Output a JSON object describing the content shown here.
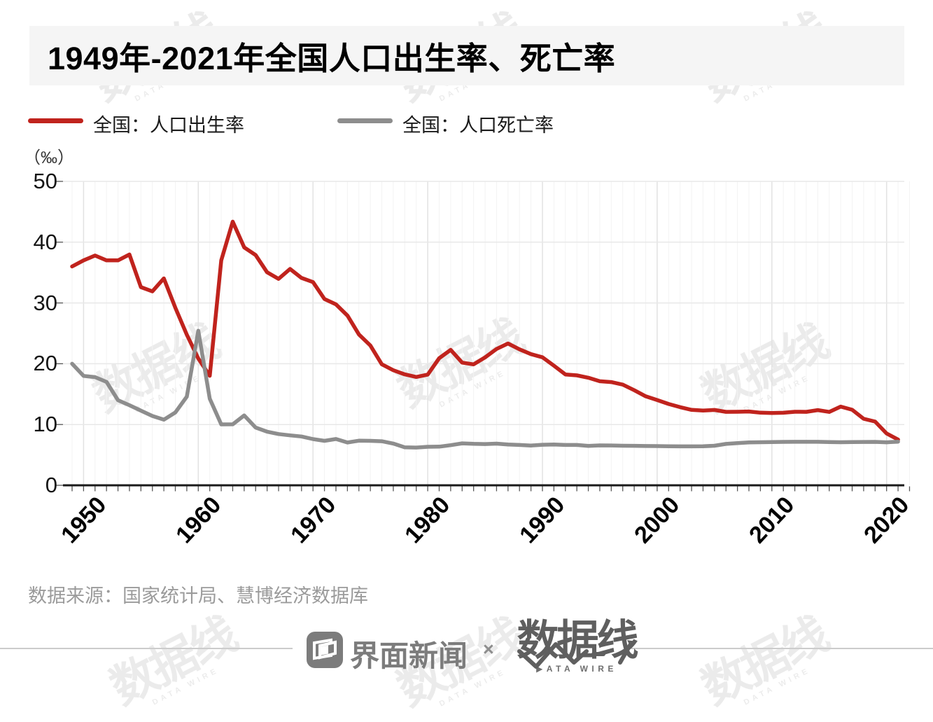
{
  "title": "1949年-2021年全国人口出生率、死亡率",
  "unit_label": "（‰）",
  "legend": [
    {
      "label": "全国：人口出生率",
      "color": "#c0231d"
    },
    {
      "label": "全国：人口死亡率",
      "color": "#8d8d8d"
    }
  ],
  "source": "数据来源：国家统计局、慧博经济数据库",
  "footer": {
    "jiemian_label": "界面新闻",
    "separator": "×",
    "datawire_label": "数据线",
    "datawire_caption": "▶ATA WIRE"
  },
  "watermark": {
    "big": "数据线",
    "small": "DATA WIRE"
  },
  "colors": {
    "birth_line": "#c0231d",
    "death_line": "#8d8d8d",
    "title_band": "#f5f5f5",
    "axis": "#1a1a1a",
    "grid_major": "#e8e8e8",
    "grid_year": "#f3f3f3",
    "grid_decade": "#e2e2e2",
    "tick": "#555555"
  },
  "chart_data": {
    "type": "line",
    "title": "1949年-2021年全国人口出生率、死亡率",
    "ylabel": "‰",
    "ylim": [
      0,
      50
    ],
    "yticks": [
      0,
      10,
      20,
      30,
      40,
      50
    ],
    "xticks": [
      1950,
      1960,
      1970,
      1980,
      1990,
      2000,
      2010,
      2020
    ],
    "grid": true,
    "legend_position": "top-left",
    "years": [
      1949,
      1950,
      1951,
      1952,
      1953,
      1954,
      1955,
      1956,
      1957,
      1958,
      1959,
      1960,
      1961,
      1962,
      1963,
      1964,
      1965,
      1966,
      1967,
      1968,
      1969,
      1970,
      1971,
      1972,
      1973,
      1974,
      1975,
      1976,
      1977,
      1978,
      1979,
      1980,
      1981,
      1982,
      1983,
      1984,
      1985,
      1986,
      1987,
      1988,
      1989,
      1990,
      1991,
      1992,
      1993,
      1994,
      1995,
      1996,
      1997,
      1998,
      1999,
      2000,
      2001,
      2002,
      2003,
      2004,
      2005,
      2006,
      2007,
      2008,
      2009,
      2010,
      2011,
      2012,
      2013,
      2014,
      2015,
      2016,
      2017,
      2018,
      2019,
      2020,
      2021
    ],
    "series": [
      {
        "name": "全国：人口出生率",
        "color": "#c0231d",
        "values": [
          36.0,
          37.0,
          37.8,
          37.0,
          37.0,
          37.97,
          32.6,
          31.9,
          34.03,
          29.22,
          24.78,
          20.86,
          18.02,
          37.01,
          43.37,
          39.14,
          37.88,
          35.05,
          33.96,
          35.59,
          34.11,
          33.43,
          30.65,
          29.77,
          27.93,
          24.82,
          23.01,
          19.91,
          18.93,
          18.25,
          17.82,
          18.21,
          20.91,
          22.28,
          20.19,
          19.9,
          21.04,
          22.43,
          23.33,
          22.37,
          21.58,
          21.06,
          19.68,
          18.24,
          18.09,
          17.7,
          17.12,
          16.98,
          16.57,
          15.64,
          14.64,
          14.03,
          13.38,
          12.86,
          12.41,
          12.29,
          12.4,
          12.09,
          12.1,
          12.14,
          11.95,
          11.9,
          11.93,
          12.1,
          12.08,
          12.37,
          12.07,
          12.95,
          12.43,
          10.94,
          10.48,
          8.52,
          7.52
        ]
      },
      {
        "name": "全国：人口死亡率",
        "color": "#8d8d8d",
        "values": [
          20.0,
          18.0,
          17.8,
          17.0,
          14.0,
          13.18,
          12.28,
          11.4,
          10.8,
          11.98,
          14.59,
          25.43,
          14.24,
          10.02,
          10.04,
          11.5,
          9.5,
          8.83,
          8.43,
          8.21,
          8.03,
          7.6,
          7.32,
          7.61,
          7.04,
          7.34,
          7.32,
          7.25,
          6.87,
          6.25,
          6.21,
          6.34,
          6.36,
          6.6,
          6.9,
          6.82,
          6.78,
          6.86,
          6.72,
          6.64,
          6.54,
          6.67,
          6.7,
          6.64,
          6.64,
          6.49,
          6.57,
          6.56,
          6.51,
          6.5,
          6.46,
          6.45,
          6.43,
          6.41,
          6.4,
          6.42,
          6.51,
          6.81,
          6.93,
          7.06,
          7.08,
          7.11,
          7.14,
          7.15,
          7.16,
          7.16,
          7.11,
          7.09,
          7.11,
          7.13,
          7.14,
          7.07,
          7.18
        ]
      }
    ]
  }
}
